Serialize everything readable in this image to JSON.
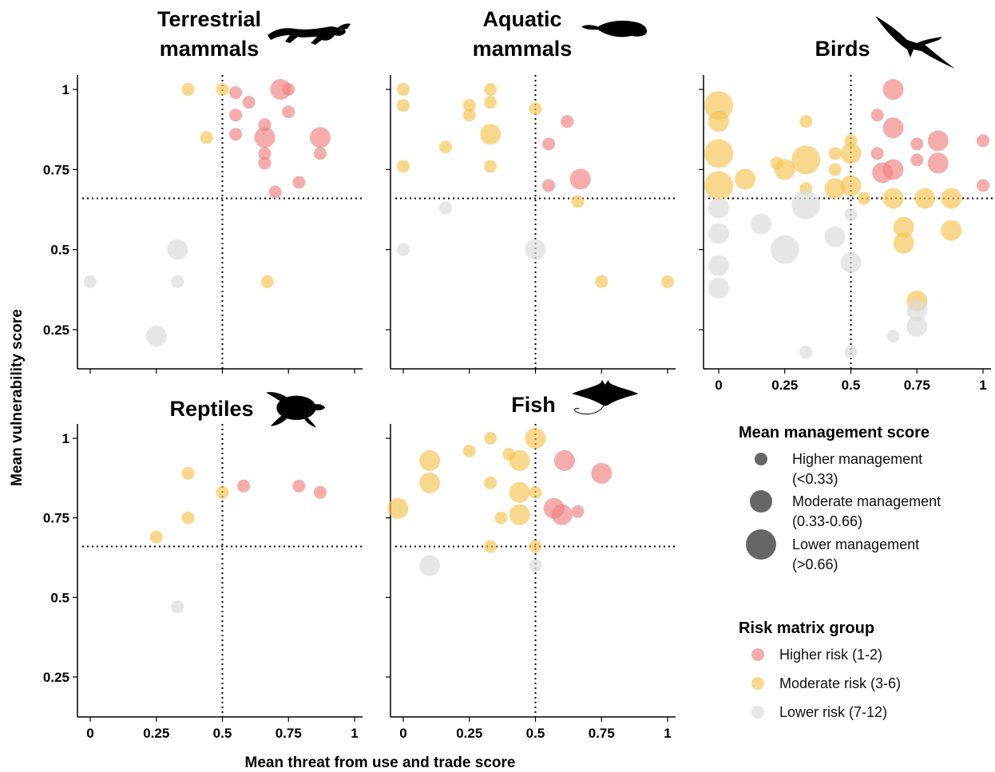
{
  "chart_data": {
    "type": "scatter",
    "xlabel": "Mean threat from use and trade score",
    "ylabel": "Mean vulnerability score",
    "xlim": [
      0,
      1
    ],
    "ylim": [
      0.15,
      1.05
    ],
    "x_ticks": [
      "0",
      "0.25",
      "0.5",
      "0.75",
      "1"
    ],
    "y_ticks": [
      "0.25",
      "0.5",
      "0.75",
      "1"
    ],
    "threshold_x": 0.5,
    "threshold_y": 0.66,
    "colors": {
      "higher": "#f08080",
      "moderate": "#f5c350",
      "lower": "#dcdcdc"
    },
    "legend": {
      "size_title": "Mean management score",
      "size_items": [
        {
          "line1": "Higher management",
          "line2": "(<0.33)"
        },
        {
          "line1": "Moderate management",
          "line2": "(0.33-0.66)"
        },
        {
          "line1": "Lower management",
          "line2": "(>0.66)"
        }
      ],
      "color_title": "Risk matrix group",
      "color_items": [
        {
          "label": "Higher risk (1-2)",
          "key": "higher"
        },
        {
          "label": "Moderate risk (3-6)",
          "key": "moderate"
        },
        {
          "label": "Lower risk (7-12)",
          "key": "lower"
        }
      ]
    },
    "panels": [
      {
        "id": "terrestrial",
        "title_lines": [
          "Terrestrial",
          "mammals"
        ],
        "silhouette": "running-cat-icon",
        "points": [
          [
            0.5,
            1.0,
            "moderate",
            2
          ],
          [
            0.37,
            1.0,
            "moderate",
            2
          ],
          [
            0.6,
            0.96,
            "higher",
            2
          ],
          [
            0.72,
            1.0,
            "higher",
            3
          ],
          [
            0.75,
            1.0,
            "higher",
            2
          ],
          [
            0.55,
            0.99,
            "higher",
            2
          ],
          [
            0.75,
            0.93,
            "higher",
            2
          ],
          [
            0.55,
            0.92,
            "higher",
            2
          ],
          [
            0.66,
            0.89,
            "higher",
            2
          ],
          [
            0.55,
            0.86,
            "higher",
            2
          ],
          [
            0.66,
            0.85,
            "higher",
            3
          ],
          [
            0.44,
            0.85,
            "moderate",
            2
          ],
          [
            0.87,
            0.85,
            "higher",
            3
          ],
          [
            0.66,
            0.8,
            "higher",
            2
          ],
          [
            0.87,
            0.8,
            "higher",
            2
          ],
          [
            0.66,
            0.77,
            "higher",
            2
          ],
          [
            0.79,
            0.71,
            "higher",
            2
          ],
          [
            0.7,
            0.68,
            "higher",
            2
          ],
          [
            0.67,
            0.4,
            "moderate",
            2
          ],
          [
            0.33,
            0.5,
            "lower",
            3
          ],
          [
            0.33,
            0.4,
            "lower",
            2
          ],
          [
            0.0,
            0.4,
            "lower",
            2
          ],
          [
            0.25,
            0.23,
            "lower",
            3
          ]
        ]
      },
      {
        "id": "aquatic",
        "title_lines": [
          "Aquatic",
          "mammals"
        ],
        "silhouette": "seal-icon",
        "points": [
          [
            0.0,
            1.0,
            "moderate",
            2
          ],
          [
            0.33,
            1.0,
            "moderate",
            2
          ],
          [
            0.0,
            0.95,
            "moderate",
            2
          ],
          [
            0.25,
            0.95,
            "moderate",
            2
          ],
          [
            0.33,
            0.96,
            "moderate",
            2
          ],
          [
            0.25,
            0.92,
            "moderate",
            2
          ],
          [
            0.5,
            0.94,
            "moderate",
            2
          ],
          [
            0.62,
            0.9,
            "higher",
            2
          ],
          [
            0.33,
            0.86,
            "moderate",
            3
          ],
          [
            0.16,
            0.82,
            "moderate",
            2
          ],
          [
            0.55,
            0.83,
            "higher",
            2
          ],
          [
            0.0,
            0.76,
            "moderate",
            2
          ],
          [
            0.33,
            0.76,
            "moderate",
            2
          ],
          [
            0.67,
            0.72,
            "higher",
            3
          ],
          [
            0.55,
            0.7,
            "higher",
            2
          ],
          [
            0.66,
            0.65,
            "moderate",
            2
          ],
          [
            0.16,
            0.63,
            "lower",
            2
          ],
          [
            0.0,
            0.5,
            "lower",
            2
          ],
          [
            0.5,
            0.5,
            "lower",
            3
          ],
          [
            0.75,
            0.4,
            "moderate",
            2
          ],
          [
            1.0,
            0.4,
            "moderate",
            2
          ]
        ]
      },
      {
        "id": "birds",
        "title_lines": [
          "Birds"
        ],
        "silhouette": "stork-icon",
        "points": [
          [
            0.0,
            0.95,
            "moderate",
            4
          ],
          [
            0.0,
            0.9,
            "moderate",
            3
          ],
          [
            0.0,
            0.8,
            "moderate",
            4
          ],
          [
            0.0,
            0.7,
            "moderate",
            4
          ],
          [
            0.1,
            0.72,
            "moderate",
            3
          ],
          [
            0.22,
            0.77,
            "moderate",
            2
          ],
          [
            0.25,
            0.75,
            "moderate",
            3
          ],
          [
            0.33,
            0.78,
            "moderate",
            4
          ],
          [
            0.33,
            0.9,
            "moderate",
            2
          ],
          [
            0.33,
            0.69,
            "moderate",
            2
          ],
          [
            0.44,
            0.8,
            "moderate",
            2
          ],
          [
            0.44,
            0.75,
            "moderate",
            2
          ],
          [
            0.44,
            0.69,
            "moderate",
            3
          ],
          [
            0.5,
            0.84,
            "moderate",
            2
          ],
          [
            0.5,
            0.8,
            "moderate",
            3
          ],
          [
            0.5,
            0.7,
            "moderate",
            3
          ],
          [
            0.55,
            0.66,
            "moderate",
            2
          ],
          [
            0.6,
            0.8,
            "higher",
            2
          ],
          [
            0.62,
            0.74,
            "higher",
            3
          ],
          [
            0.66,
            1.0,
            "higher",
            3
          ],
          [
            0.66,
            0.88,
            "higher",
            3
          ],
          [
            0.66,
            0.75,
            "higher",
            3
          ],
          [
            0.75,
            0.83,
            "higher",
            2
          ],
          [
            0.75,
            0.78,
            "higher",
            2
          ],
          [
            0.83,
            0.84,
            "higher",
            3
          ],
          [
            0.83,
            0.77,
            "higher",
            3
          ],
          [
            1.0,
            0.84,
            "higher",
            2
          ],
          [
            1.0,
            0.7,
            "higher",
            2
          ],
          [
            0.6,
            0.92,
            "higher",
            2
          ],
          [
            0.66,
            0.66,
            "moderate",
            3
          ],
          [
            0.78,
            0.66,
            "moderate",
            3
          ],
          [
            0.88,
            0.66,
            "moderate",
            3
          ],
          [
            0.7,
            0.57,
            "moderate",
            3
          ],
          [
            0.7,
            0.52,
            "moderate",
            3
          ],
          [
            0.88,
            0.56,
            "moderate",
            3
          ],
          [
            0.75,
            0.34,
            "moderate",
            3
          ],
          [
            0.0,
            0.63,
            "lower",
            3
          ],
          [
            0.0,
            0.55,
            "lower",
            3
          ],
          [
            0.0,
            0.45,
            "lower",
            3
          ],
          [
            0.0,
            0.38,
            "lower",
            3
          ],
          [
            0.16,
            0.58,
            "lower",
            3
          ],
          [
            0.25,
            0.5,
            "lower",
            4
          ],
          [
            0.33,
            0.64,
            "lower",
            4
          ],
          [
            0.44,
            0.54,
            "lower",
            3
          ],
          [
            0.5,
            0.61,
            "lower",
            2
          ],
          [
            0.5,
            0.46,
            "lower",
            3
          ],
          [
            0.75,
            0.31,
            "lower",
            3
          ],
          [
            0.75,
            0.26,
            "lower",
            3
          ],
          [
            0.66,
            0.23,
            "lower",
            2
          ],
          [
            0.33,
            0.18,
            "lower",
            2
          ],
          [
            0.5,
            0.18,
            "lower",
            2
          ]
        ]
      },
      {
        "id": "reptiles",
        "title_lines": [
          "Reptiles"
        ],
        "silhouette": "sea-turtle-icon",
        "points": [
          [
            0.37,
            0.89,
            "moderate",
            2
          ],
          [
            0.5,
            0.83,
            "moderate",
            2
          ],
          [
            0.58,
            0.85,
            "higher",
            2
          ],
          [
            0.79,
            0.85,
            "higher",
            2
          ],
          [
            0.87,
            0.83,
            "higher",
            2
          ],
          [
            0.37,
            0.75,
            "moderate",
            2
          ],
          [
            0.25,
            0.69,
            "moderate",
            2
          ],
          [
            0.33,
            0.47,
            "lower",
            2
          ]
        ]
      },
      {
        "id": "fish",
        "title_lines": [
          "Fish"
        ],
        "silhouette": "manta-ray-icon",
        "points": [
          [
            0.33,
            1.0,
            "moderate",
            2
          ],
          [
            0.5,
            1.0,
            "moderate",
            3
          ],
          [
            0.25,
            0.96,
            "moderate",
            2
          ],
          [
            0.4,
            0.95,
            "moderate",
            2
          ],
          [
            0.1,
            0.93,
            "moderate",
            3
          ],
          [
            0.44,
            0.93,
            "moderate",
            3
          ],
          [
            0.61,
            0.93,
            "higher",
            3
          ],
          [
            0.75,
            0.89,
            "higher",
            3
          ],
          [
            0.1,
            0.86,
            "moderate",
            3
          ],
          [
            0.33,
            0.86,
            "moderate",
            2
          ],
          [
            0.44,
            0.83,
            "moderate",
            3
          ],
          [
            0.5,
            0.83,
            "moderate",
            2
          ],
          [
            -0.02,
            0.78,
            "moderate",
            3
          ],
          [
            0.57,
            0.78,
            "higher",
            3
          ],
          [
            0.6,
            0.76,
            "higher",
            3
          ],
          [
            0.66,
            0.77,
            "higher",
            2
          ],
          [
            0.44,
            0.76,
            "moderate",
            3
          ],
          [
            0.37,
            0.75,
            "moderate",
            2
          ],
          [
            0.33,
            0.66,
            "moderate",
            2
          ],
          [
            0.5,
            0.66,
            "moderate",
            2
          ],
          [
            0.1,
            0.6,
            "lower",
            3
          ],
          [
            0.5,
            0.6,
            "lower",
            2
          ]
        ]
      }
    ]
  }
}
